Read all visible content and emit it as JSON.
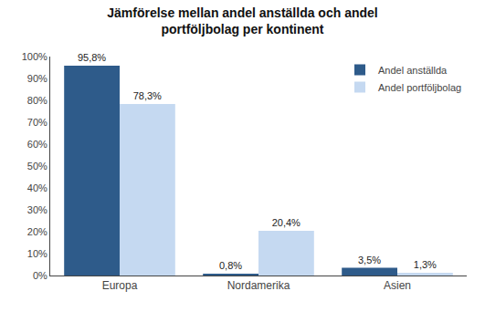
{
  "chart_data": {
    "type": "bar",
    "title": "Jämförelse mellan andel anställda och andel\nportföljbolag per kontinent",
    "categories": [
      "Europa",
      "Nordamerika",
      "Asien"
    ],
    "series": [
      {
        "name": "Andel anställda",
        "color": "#2E5B8A",
        "values": [
          95.8,
          0.8,
          3.5
        ],
        "value_labels": [
          "95,8%",
          "0,8%",
          "3,5%"
        ]
      },
      {
        "name": "Andel portföljbolag",
        "color": "#C5D9F1",
        "values": [
          78.3,
          20.4,
          1.3
        ],
        "value_labels": [
          "78,3%",
          "20,4%",
          "1,3%"
        ]
      }
    ],
    "ylim": [
      0,
      100
    ],
    "yticks": [
      {
        "value": 0,
        "label": "0%"
      },
      {
        "value": 10,
        "label": "10%"
      },
      {
        "value": 20,
        "label": "20%"
      },
      {
        "value": 30,
        "label": "30%"
      },
      {
        "value": 40,
        "label": "40%"
      },
      {
        "value": 50,
        "label": "50%"
      },
      {
        "value": 60,
        "label": "60%"
      },
      {
        "value": 70,
        "label": "70%"
      },
      {
        "value": 80,
        "label": "80%"
      },
      {
        "value": 90,
        "label": "90%"
      },
      {
        "value": 100,
        "label": "100%"
      }
    ],
    "grid": false,
    "legend": "upper right",
    "data_labels": true
  }
}
